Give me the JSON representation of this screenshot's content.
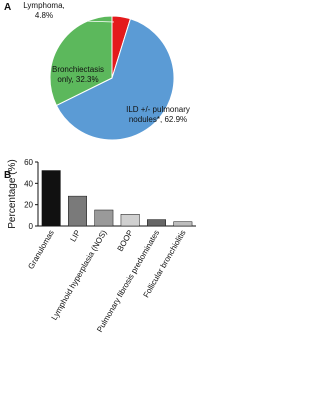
{
  "panels": [
    "A",
    "B"
  ],
  "chart_data": [
    {
      "type": "pie",
      "categories": [
        "Lymphoma,",
        "ILD +/- pulmonary nodules*,",
        "Bronchiectasis only,"
      ],
      "values": [
        4.8,
        62.9,
        32.3
      ],
      "value_labels": [
        "4.8%",
        "62.9%",
        "32.3%"
      ],
      "colors": [
        "#e41a1c",
        "#5b9bd5",
        "#5cb85c"
      ]
    },
    {
      "type": "bar",
      "ylabel": "Percentage (%)",
      "categories": [
        "Granulomas",
        "LIP",
        "Lymphoid hyperplasia (NOS)",
        "BOOP",
        "Pulmonary fibrosis predominates",
        "Follicular bronchiolitis"
      ],
      "values": [
        52,
        28,
        15,
        11,
        6,
        4
      ],
      "colors": [
        "#111111",
        "#7a7a7a",
        "#9a9a9a",
        "#d0d0d0",
        "#666666",
        "#bdbdbd"
      ],
      "ylim": [
        0,
        60
      ],
      "yticks": [
        0,
        20,
        40,
        60
      ]
    }
  ]
}
